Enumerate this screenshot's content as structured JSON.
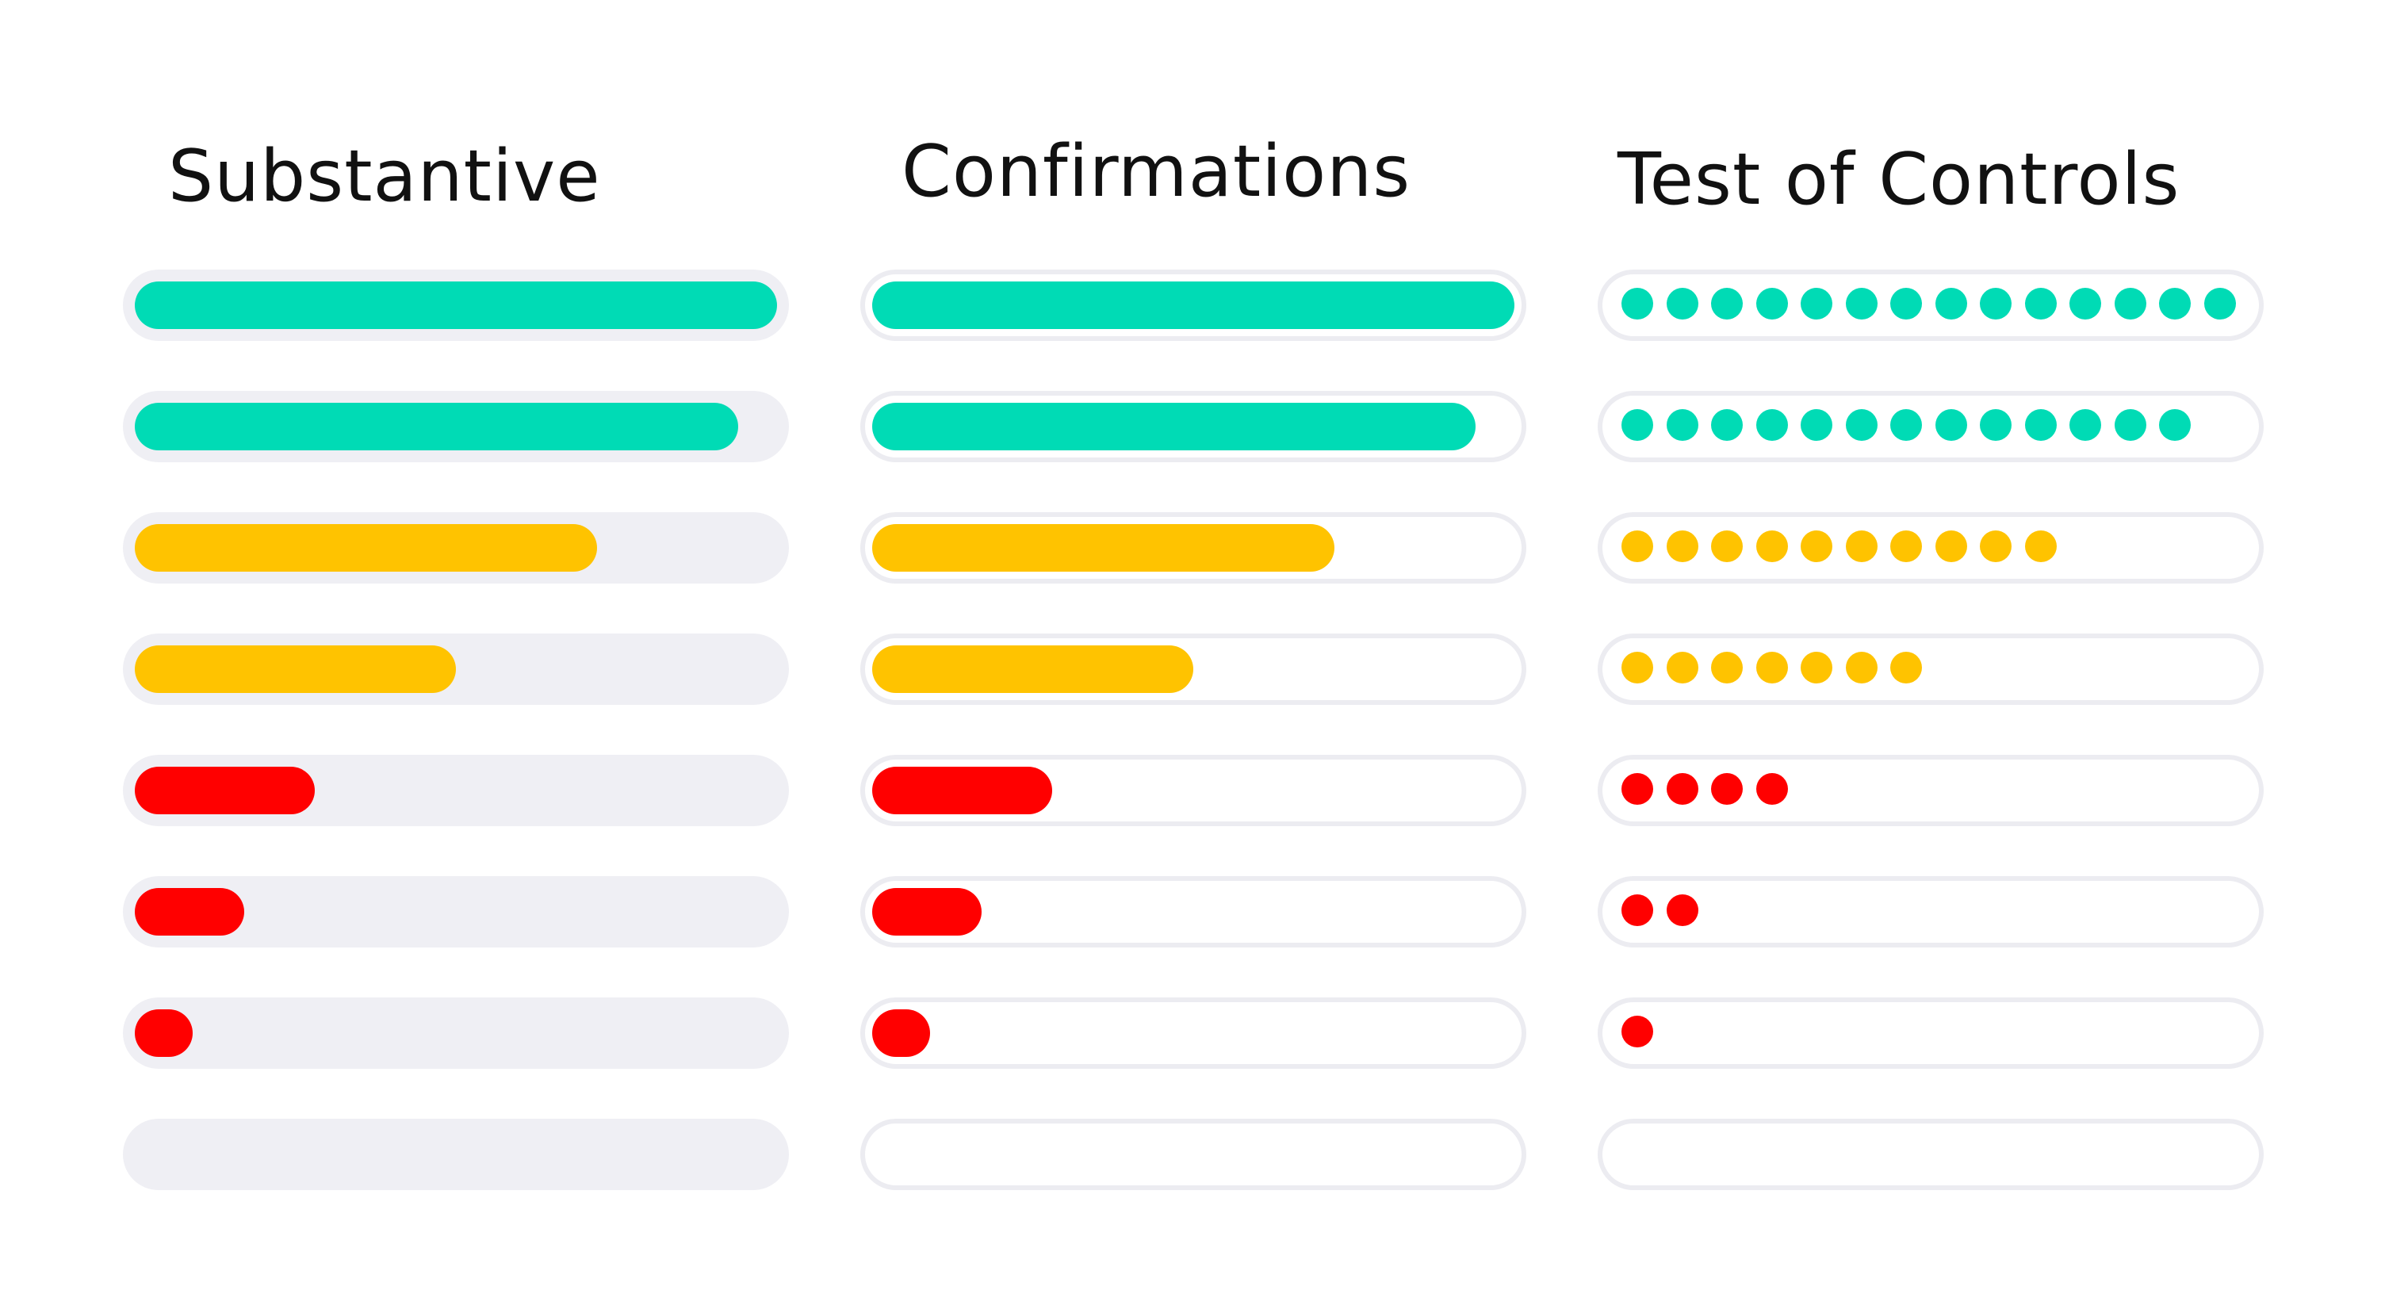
{
  "titles": {
    "substantive": "Substantive",
    "confirmations": "Confirmations",
    "controls": "Test of Controls"
  },
  "colors": {
    "green": "#00dbb5",
    "yellow": "#ffc300",
    "red": "#ff0000",
    "track": "#efeff4",
    "outline": "#ececf1"
  },
  "bars": [
    {
      "fraction": 1.0,
      "color": "green"
    },
    {
      "fraction": 0.94,
      "color": "green"
    },
    {
      "fraction": 0.72,
      "color": "yellow"
    },
    {
      "fraction": 0.5,
      "color": "yellow"
    },
    {
      "fraction": 0.28,
      "color": "red"
    },
    {
      "fraction": 0.17,
      "color": "red"
    },
    {
      "fraction": 0.09,
      "color": "red"
    },
    {
      "fraction": 0.0,
      "color": "none"
    }
  ],
  "dot_rows": [
    {
      "count": 14,
      "color": "green"
    },
    {
      "count": 13,
      "color": "green"
    },
    {
      "count": 10,
      "color": "yellow"
    },
    {
      "count": 7,
      "color": "yellow"
    },
    {
      "count": 4,
      "color": "red"
    },
    {
      "count": 2,
      "color": "red"
    },
    {
      "count": 1,
      "color": "red"
    },
    {
      "count": 0,
      "color": "none"
    }
  ]
}
